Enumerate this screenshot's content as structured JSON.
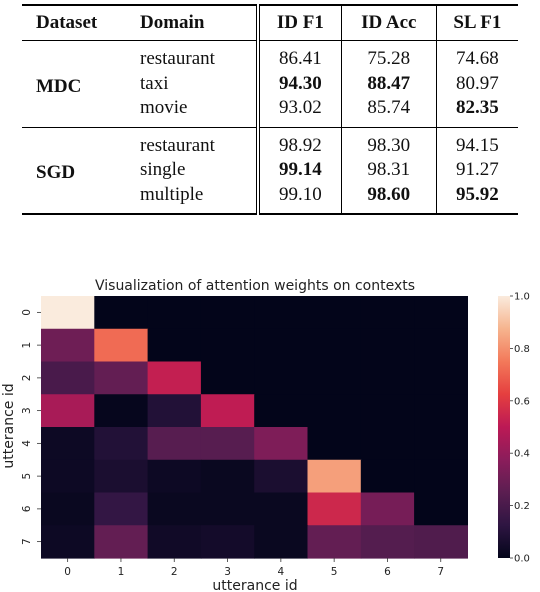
{
  "table": {
    "headers": [
      "Dataset",
      "Domain",
      "ID F1",
      "ID Acc",
      "SL F1"
    ],
    "groups": [
      {
        "dataset": "MDC",
        "rows": [
          {
            "domain": "restaurant",
            "id_f1": "86.41",
            "id_acc": "75.28",
            "sl_f1": "74.68",
            "bold": []
          },
          {
            "domain": "taxi",
            "id_f1": "94.30",
            "id_acc": "88.47",
            "sl_f1": "80.97",
            "bold": [
              "id_f1",
              "id_acc"
            ]
          },
          {
            "domain": "movie",
            "id_f1": "93.02",
            "id_acc": "85.74",
            "sl_f1": "82.35",
            "bold": [
              "sl_f1"
            ]
          }
        ]
      },
      {
        "dataset": "SGD",
        "rows": [
          {
            "domain": "restaurant",
            "id_f1": "98.92",
            "id_acc": "98.30",
            "sl_f1": "94.15",
            "bold": []
          },
          {
            "domain": "single",
            "id_f1": "99.14",
            "id_acc": "98.31",
            "sl_f1": "91.27",
            "bold": [
              "id_f1"
            ]
          },
          {
            "domain": "multiple",
            "id_f1": "99.10",
            "id_acc": "98.60",
            "sl_f1": "95.92",
            "bold": [
              "id_acc",
              "sl_f1"
            ]
          }
        ]
      }
    ]
  },
  "heatmap": {
    "title": "Visualization of attention weights on contexts",
    "xlabel": "utterance id",
    "ylabel": "utterance id",
    "x_ticks": [
      "0",
      "1",
      "2",
      "3",
      "4",
      "5",
      "6",
      "7"
    ],
    "y_ticks": [
      "0",
      "1",
      "2",
      "3",
      "4",
      "5",
      "6",
      "7"
    ],
    "colorbar_ticks": [
      "0.0",
      "0.2",
      "0.4",
      "0.6",
      "0.8",
      "1.0"
    ],
    "colormap": [
      "#03051a",
      "#2e1542",
      "#5b1e51",
      "#8b1d5b",
      "#bc1955",
      "#e53f3f",
      "#f3795a",
      "#f6b48e",
      "#faebdd"
    ],
    "values": [
      [
        1.0,
        0.0,
        0.0,
        0.0,
        0.0,
        0.0,
        0.0,
        0.0
      ],
      [
        0.3,
        0.72,
        0.0,
        0.0,
        0.0,
        0.0,
        0.0,
        0.0
      ],
      [
        0.2,
        0.27,
        0.52,
        0.0,
        0.0,
        0.0,
        0.0,
        0.0
      ],
      [
        0.45,
        0.01,
        0.09,
        0.51,
        0.0,
        0.0,
        0.0,
        0.0
      ],
      [
        0.03,
        0.09,
        0.24,
        0.24,
        0.34,
        0.0,
        0.0,
        0.0
      ],
      [
        0.03,
        0.07,
        0.03,
        0.02,
        0.07,
        0.83,
        0.0,
        0.0
      ],
      [
        0.02,
        0.14,
        0.02,
        0.02,
        0.02,
        0.55,
        0.32,
        0.0
      ],
      [
        0.03,
        0.27,
        0.04,
        0.05,
        0.02,
        0.27,
        0.23,
        0.22
      ]
    ]
  }
}
